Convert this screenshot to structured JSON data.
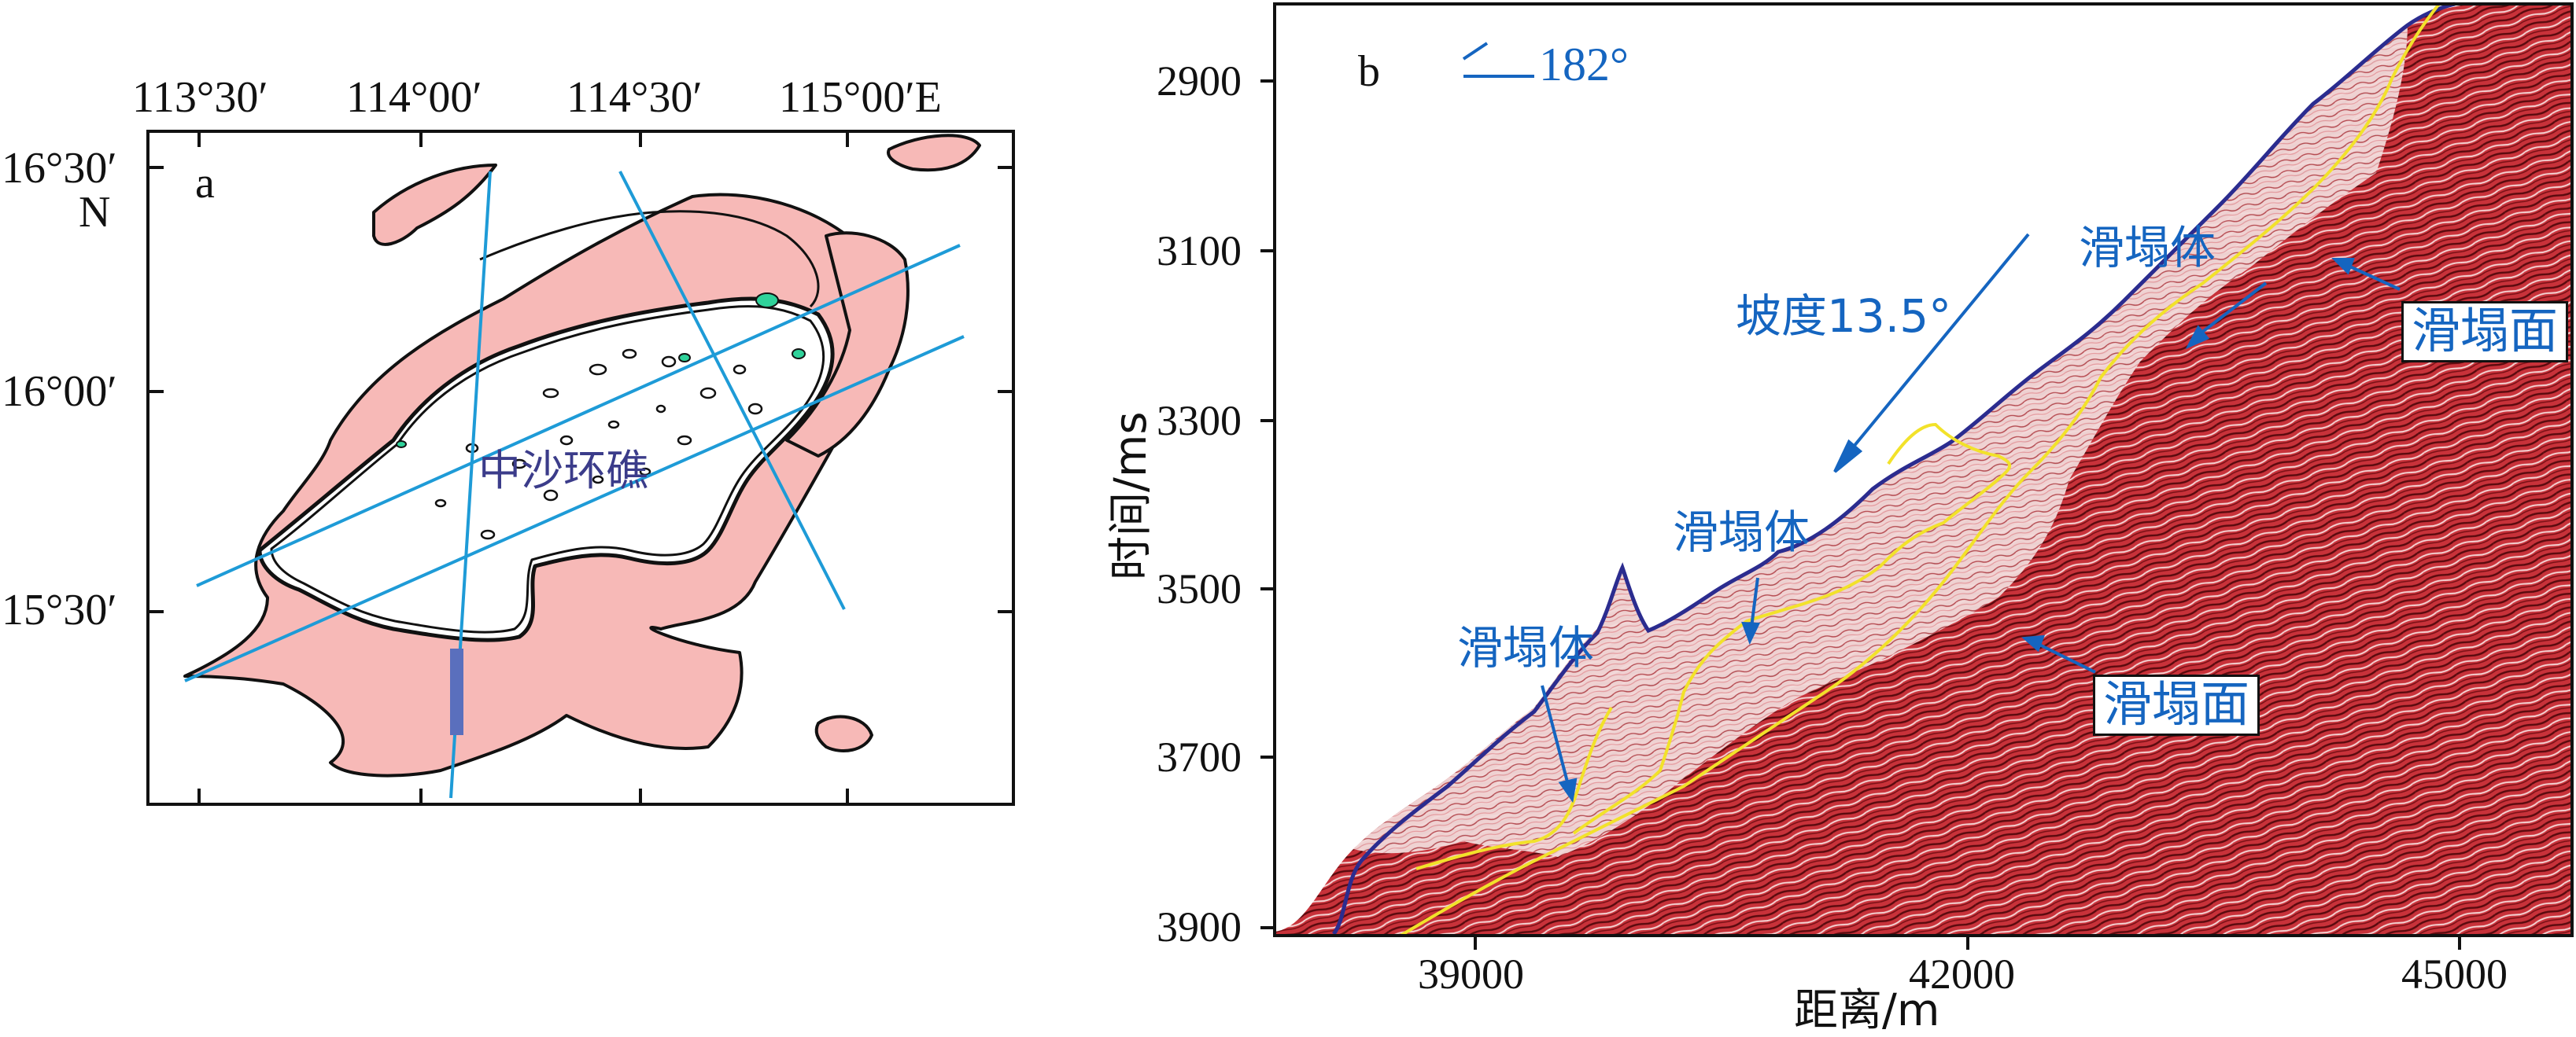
{
  "panel_a": {
    "label": "a",
    "lon_ticks": [
      "113°30′",
      "114°00′",
      "114°30′",
      "115°00′E"
    ],
    "lat_ticks": [
      "16°30′",
      "16°00′",
      "15°30′"
    ],
    "north_label": "N",
    "atoll_name": "中沙环礁"
  },
  "panel_b": {
    "label": "b",
    "azimuth": "182°",
    "slope_label": "坡度13.5°",
    "slide_body": "滑塌体",
    "slide_surface": "滑塌面",
    "y_axis_label": "时间/ms",
    "x_axis_label": "距离/m",
    "y_ticks": [
      "2900",
      "3100",
      "3300",
      "3500",
      "3700",
      "3900"
    ],
    "x_ticks": [
      "39000",
      "42000",
      "45000"
    ]
  },
  "colors": {
    "shelf_fill": "#f7b9b7",
    "line_blue": "#1e9bd7",
    "annot_blue": "#1565c0",
    "seismic_red": "#b0151c",
    "horizon_yellow": "#f2e22a",
    "reef_green": "#2fd29a"
  }
}
